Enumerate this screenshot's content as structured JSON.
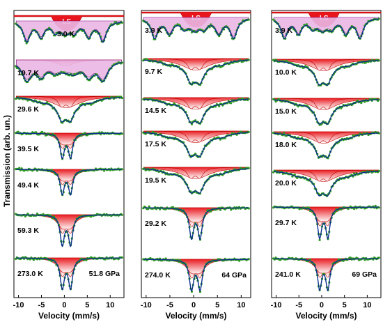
{
  "y_axis_title": "Transmission (arb. un.)",
  "chart_data": [
    {
      "type": "line",
      "pressure": "51.8 GPa",
      "xlabel": "Velocity (mm/s)",
      "xlim": [
        -11,
        13
      ],
      "xticks": [
        -10,
        -5,
        0,
        5,
        10
      ],
      "ls_label": "LS",
      "spectra": [
        {
          "temperature": "3.0 K",
          "kind": "magnetic",
          "ls": true
        },
        {
          "temperature": "19.7 K",
          "kind": "magnetic-broad"
        },
        {
          "temperature": "29.6 K",
          "kind": "relax"
        },
        {
          "temperature": "39.5 K",
          "kind": "doublet"
        },
        {
          "temperature": "49.4 K",
          "kind": "doublet"
        },
        {
          "temperature": "59.3 K",
          "kind": "doublet"
        },
        {
          "temperature": "273.0 K",
          "kind": "doublet"
        }
      ]
    },
    {
      "type": "line",
      "pressure": "64 GPa",
      "xlabel": "Velocity (mm/s)",
      "xlim": [
        -11,
        12
      ],
      "xticks": [
        -10,
        -5,
        0,
        5,
        10
      ],
      "ls_label": "LS",
      "spectra": [
        {
          "temperature": "3.9 K",
          "kind": "magnetic",
          "ls": true
        },
        {
          "temperature": "9.7 K",
          "kind": "relax"
        },
        {
          "temperature": "14.5 K",
          "kind": "relax"
        },
        {
          "temperature": "17.5 K",
          "kind": "relax"
        },
        {
          "temperature": "19.5 K",
          "kind": "relax"
        },
        {
          "temperature": "29.2 K",
          "kind": "doublet"
        },
        {
          "temperature": "274.0 K",
          "kind": "doublet"
        }
      ]
    },
    {
      "type": "line",
      "pressure": "69 GPa",
      "xlabel": "Velocity (mm/s)",
      "xlim": [
        -11,
        13
      ],
      "xticks": [
        -10,
        -5,
        0,
        5,
        10
      ],
      "ls_label": "LS",
      "spectra": [
        {
          "temperature": "3.9 K",
          "kind": "magnetic",
          "ls": true
        },
        {
          "temperature": "10.0 K",
          "kind": "relax"
        },
        {
          "temperature": "15.0 K",
          "kind": "relax"
        },
        {
          "temperature": "18.0 K",
          "kind": "relax"
        },
        {
          "temperature": "20.0 K",
          "kind": "relax"
        },
        {
          "temperature": "29.7 K",
          "kind": "doublet"
        },
        {
          "temperature": "241.0 K",
          "kind": "doublet"
        }
      ]
    }
  ]
}
